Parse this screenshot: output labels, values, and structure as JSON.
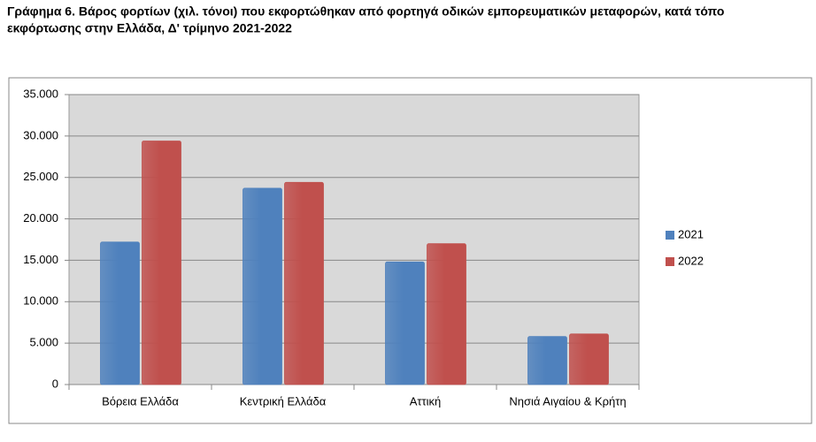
{
  "chart_data": {
    "type": "bar",
    "title_lines": [
      "Γράφημα 6. Βάρος φορτίων (χιλ. τόνοι) που εκφορτώθηκαν από φορτηγά οδικών εμπορευματικών μεταφορών, κατά τόπο",
      "εκφόρτωσης στην Ελλάδα, Δ' τρίμηνο 2021-2022"
    ],
    "categories": [
      "Βόρεια Ελλάδα",
      "Κεντρική Ελλάδα",
      "Αττική",
      "Νησιά Αιγαίου & Κρήτη"
    ],
    "series": [
      {
        "name": "2021",
        "color": "#4f81bd",
        "values": [
          17200,
          23700,
          14800,
          5800
        ]
      },
      {
        "name": "2022",
        "color": "#c0504d",
        "values": [
          29400,
          24400,
          17000,
          6100
        ]
      }
    ],
    "ylim": [
      0,
      35000
    ],
    "yticks": [
      0,
      {
        "value": 5000,
        "label": "5.000"
      },
      {
        "value": 10000,
        "label": "10.000"
      },
      {
        "value": 15000,
        "label": "15.000"
      },
      {
        "value": 20000,
        "label": "20.000"
      },
      {
        "value": 25000,
        "label": "25.000"
      },
      {
        "value": 30000,
        "label": "30.000"
      },
      {
        "value": 35000,
        "label": "35.000"
      }
    ],
    "grid": true,
    "legend": "right"
  }
}
